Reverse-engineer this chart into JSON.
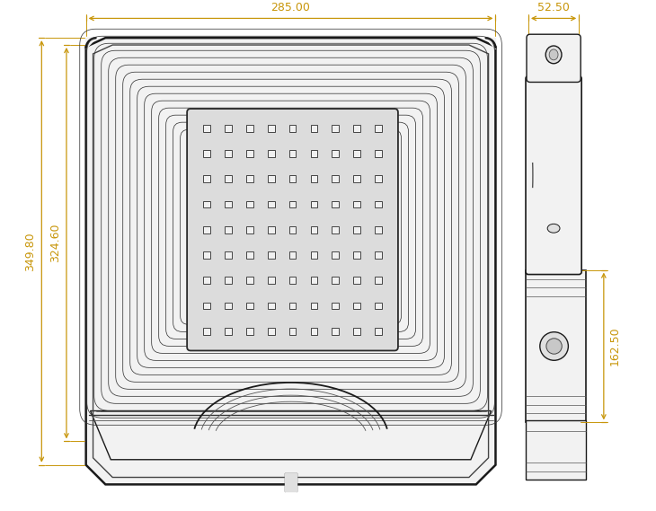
{
  "bg_color": "#ffffff",
  "line_color": "#1a1a1a",
  "dim_color": "#c8960a",
  "dim_285": "285.00",
  "dim_324_60": "324.60",
  "dim_349_80": "349.80",
  "dim_52_50": "52.50",
  "dim_162_50": "162.50",
  "fill_light": "#f2f2f2",
  "fill_mid": "#e0e0e0",
  "fill_dark": "#c8c8c8",
  "fill_panel": "#e8e8e8"
}
